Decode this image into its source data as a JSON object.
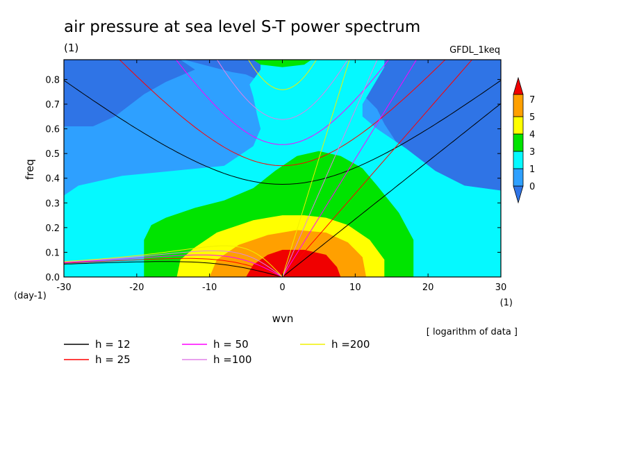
{
  "chart_data": {
    "type": "heatmap",
    "title": "air pressure at sea level S-T power spectrum",
    "subtitle_left": "(1)",
    "model_label": "GFDL_1keq",
    "xlabel": "wvn",
    "ylabel": "freq",
    "x_unit": "(1)",
    "y_unit": "(day-1)",
    "xlim": [
      -30,
      30
    ],
    "ylim": [
      0,
      0.88
    ],
    "xticks": [
      "-30",
      "-20",
      "-10",
      "0",
      "10",
      "20",
      "30"
    ],
    "yticks": [
      "0.0",
      "0.1",
      "0.2",
      "0.3",
      "0.4",
      "0.5",
      "0.6",
      "0.7",
      "0.8"
    ],
    "note": "[ logarithm of data ]",
    "colorbar": {
      "labels": [
        "0",
        "1",
        "3",
        "4",
        "5",
        "7"
      ],
      "levels": [
        0,
        1,
        3,
        4,
        5,
        7
      ],
      "colors": [
        "#2f74e6",
        "#2ea0ff",
        "#05f9ff",
        "#00e400",
        "#ffff00",
        "#ffa000",
        "#f00000"
      ]
    },
    "regions": [
      {
        "level": 1,
        "color": "#2ea0ff",
        "polygon": [
          [
            -30,
            0.88
          ],
          [
            30,
            0.88
          ],
          [
            30,
            0.0
          ],
          [
            -30,
            0.0
          ]
        ]
      },
      {
        "level": 0,
        "color": "#2f74e6",
        "polygon": [
          [
            -30,
            0.88
          ],
          [
            -14,
            0.88
          ],
          [
            -12,
            0.84
          ],
          [
            -16,
            0.79
          ],
          [
            -19,
            0.74
          ],
          [
            -23,
            0.65
          ],
          [
            -26,
            0.61
          ],
          [
            -30,
            0.61
          ]
        ]
      },
      {
        "level": 0,
        "color": "#2f74e6",
        "polygon": [
          [
            -13.5,
            0.88
          ],
          [
            9.5,
            0.88
          ],
          [
            9.5,
            0.85
          ],
          [
            7.5,
            0.82
          ],
          [
            7.5,
            0.67
          ],
          [
            9,
            0.66
          ],
          [
            9,
            0.62
          ],
          [
            6,
            0.61
          ],
          [
            -1,
            0.67
          ],
          [
            -4,
            0.77
          ],
          [
            -3.5,
            0.8
          ],
          [
            -5,
            0.82
          ],
          [
            -7,
            0.83
          ]
        ]
      },
      {
        "level": 0,
        "color": "#2f74e6",
        "polygon": [
          [
            10,
            0.88
          ],
          [
            30,
            0.88
          ],
          [
            30,
            0.35
          ],
          [
            25,
            0.37
          ],
          [
            19,
            0.45
          ],
          [
            16,
            0.53
          ],
          [
            14,
            0.62
          ],
          [
            13,
            0.68
          ],
          [
            11,
            0.74
          ],
          [
            11,
            0.83
          ]
        ]
      },
      {
        "level": 3,
        "color": "#05f9ff",
        "polygon": [
          [
            -30,
            0.0
          ],
          [
            -30,
            0.33
          ],
          [
            -28,
            0.37
          ],
          [
            -22,
            0.41
          ],
          [
            -15,
            0.43
          ],
          [
            -8,
            0.45
          ],
          [
            -4,
            0.53
          ],
          [
            -3,
            0.6
          ],
          [
            -3.5,
            0.66
          ],
          [
            -4,
            0.73
          ],
          [
            -4.5,
            0.78
          ],
          [
            -3,
            0.84
          ],
          [
            -3,
            0.88
          ],
          [
            14,
            0.88
          ],
          [
            14,
            0.85
          ],
          [
            13,
            0.8
          ],
          [
            12,
            0.75
          ],
          [
            11,
            0.7
          ],
          [
            11,
            0.65
          ],
          [
            13,
            0.6
          ],
          [
            17,
            0.52
          ],
          [
            21,
            0.43
          ],
          [
            25,
            0.37
          ],
          [
            30,
            0.35
          ],
          [
            30,
            0.0
          ]
        ]
      },
      {
        "level": 4,
        "color": "#00e400",
        "polygon": [
          [
            -19,
            0.0
          ],
          [
            -19,
            0.15
          ],
          [
            -18,
            0.21
          ],
          [
            -16,
            0.24
          ],
          [
            -12,
            0.28
          ],
          [
            -8,
            0.31
          ],
          [
            -4,
            0.36
          ],
          [
            -1,
            0.43
          ],
          [
            2,
            0.49
          ],
          [
            5,
            0.51
          ],
          [
            8,
            0.49
          ],
          [
            11,
            0.44
          ],
          [
            13,
            0.37
          ],
          [
            16,
            0.26
          ],
          [
            18,
            0.15
          ],
          [
            18,
            0.0
          ]
        ]
      },
      {
        "level": 4,
        "color": "#00e400",
        "polygon": [
          [
            -4,
            0.88
          ],
          [
            4,
            0.88
          ],
          [
            3,
            0.86
          ],
          [
            0,
            0.85
          ],
          [
            -3,
            0.86
          ]
        ]
      },
      {
        "level": 5,
        "color": "#ffff00",
        "polygon": [
          [
            -14.5,
            0.0
          ],
          [
            -14,
            0.07
          ],
          [
            -12,
            0.12
          ],
          [
            -9,
            0.18
          ],
          [
            -4,
            0.23
          ],
          [
            0,
            0.25
          ],
          [
            3,
            0.25
          ],
          [
            6,
            0.24
          ],
          [
            9,
            0.21
          ],
          [
            12,
            0.15
          ],
          [
            14,
            0.07
          ],
          [
            14,
            0.0
          ]
        ]
      },
      {
        "level": 7,
        "color": "#ffa000",
        "polygon": [
          [
            -10,
            0.0
          ],
          [
            -9,
            0.07
          ],
          [
            -6,
            0.13
          ],
          [
            -2,
            0.17
          ],
          [
            2,
            0.19
          ],
          [
            6,
            0.18
          ],
          [
            9,
            0.14
          ],
          [
            11,
            0.08
          ],
          [
            11.5,
            0.0
          ]
        ]
      },
      {
        "level": 9,
        "color": "#f00000",
        "polygon": [
          [
            -5,
            0.0
          ],
          [
            -4,
            0.05
          ],
          [
            -2,
            0.09
          ],
          [
            0,
            0.11
          ],
          [
            3,
            0.11
          ],
          [
            6,
            0.09
          ],
          [
            7.5,
            0.04
          ],
          [
            8,
            0.0
          ]
        ]
      }
    ],
    "legend": [
      {
        "label": "h = 12",
        "color": "#000000",
        "h": 12
      },
      {
        "label": "h = 25",
        "color": "#ff0000",
        "h": 25
      },
      {
        "label": "h = 50",
        "color": "#ff00ff",
        "h": 50
      },
      {
        "label": "h =100",
        "color": "#e080e8",
        "h": 100
      },
      {
        "label": "h =200",
        "color": "#f0f000",
        "h": 200
      }
    ]
  }
}
